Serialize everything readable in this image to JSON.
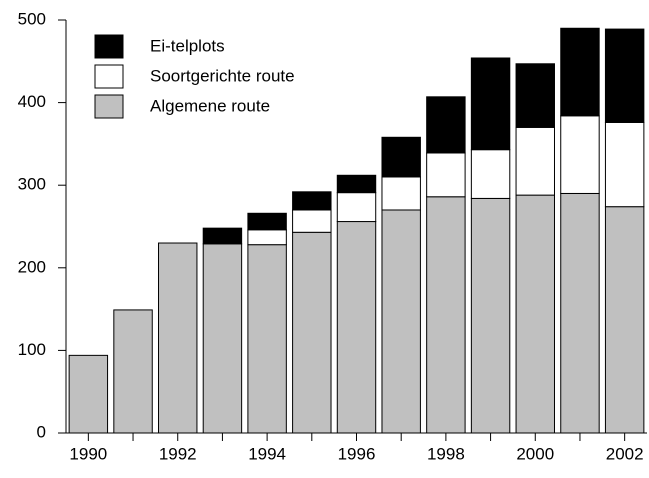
{
  "chart_data": {
    "type": "stacked-bar",
    "categories": [
      "1990",
      null,
      "1992",
      null,
      "1994",
      null,
      "1996",
      null,
      "1998",
      null,
      "2000",
      null,
      "2002"
    ],
    "series": [
      {
        "name": "Algemene route",
        "color": "#c0c0c0",
        "values": [
          94,
          149,
          230,
          229,
          228,
          243,
          256,
          270,
          286,
          284,
          288,
          290,
          274
        ]
      },
      {
        "name": "Soortgerichte route",
        "color": "#ffffff",
        "values": [
          null,
          null,
          null,
          null,
          18,
          27,
          35,
          40,
          53,
          59,
          82,
          94,
          102
        ]
      },
      {
        "name": "Ei-telplots",
        "color": "#000000",
        "values": [
          null,
          null,
          null,
          19,
          20,
          22,
          21,
          48,
          68,
          111,
          77,
          106,
          113
        ]
      }
    ],
    "ylim": [
      0,
      500
    ],
    "yticks": [
      0,
      100,
      200,
      300,
      400,
      500
    ],
    "legend": "top-left"
  }
}
